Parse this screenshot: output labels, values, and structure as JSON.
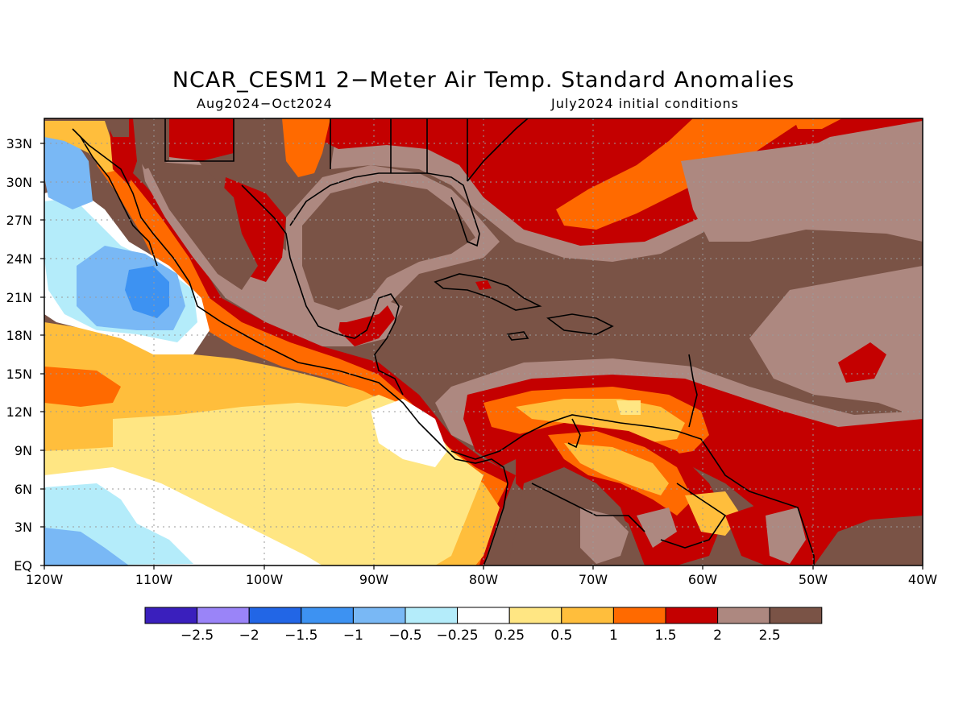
{
  "title": "NCAR_CESM1 2−Meter Air Temp. Standard Anomalies",
  "subtitle_left": "Aug2024−Oct2024",
  "subtitle_right": "July2024 initial conditions",
  "map": {
    "lon_range": [
      -120,
      -40
    ],
    "lat_range": [
      0,
      35
    ],
    "lat_ticks": [
      "33N",
      "30N",
      "27N",
      "24N",
      "21N",
      "18N",
      "15N",
      "12N",
      "9N",
      "6N",
      "3N",
      "EQ"
    ],
    "lon_ticks": [
      "120W",
      "110W",
      "100W",
      "90W",
      "80W",
      "70W",
      "60W",
      "50W",
      "40W"
    ],
    "grid": true
  },
  "legend": {
    "colors": [
      "#3a1fbd",
      "#9a84f8",
      "#2266e6",
      "#3d92f2",
      "#79b8f5",
      "#b4ecfa",
      "#ffffff",
      "#ffe683",
      "#ffbe3c",
      "#ff6a00",
      "#c40000",
      "#ad8880",
      "#7a5346"
    ],
    "labels": [
      "−2.5",
      "−2",
      "−1.5",
      "−1",
      "−0.5",
      "−0.25",
      "0.25",
      "0.5",
      "1",
      "1.5",
      "2",
      "2.5"
    ]
  }
}
